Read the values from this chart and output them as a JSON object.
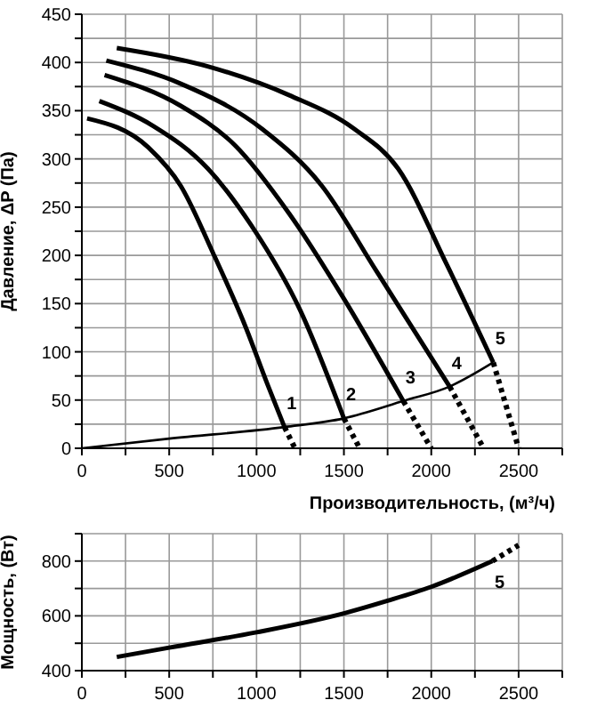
{
  "chart_data": [
    {
      "type": "line",
      "xlabel": "Производительность, (м³/ч)",
      "ylabel": "Давление, ΔP (Па)",
      "xlim": [
        0,
        2750
      ],
      "ylim": [
        0,
        450
      ],
      "xticks": [
        0,
        {
          "value": 250,
          "label": null
        },
        500,
        {
          "value": 750,
          "label": null
        },
        1000,
        {
          "value": 1250,
          "label": null
        },
        1500,
        {
          "value": 1750,
          "label": null
        },
        2000,
        {
          "value": 2250,
          "label": null
        },
        2500,
        {
          "value": 2750,
          "label": null
        }
      ],
      "yticks": [
        0,
        {
          "value": 25,
          "label": null
        },
        50,
        {
          "value": 75,
          "label": null
        },
        100,
        {
          "value": 125,
          "label": null
        },
        150,
        {
          "value": 175,
          "label": null
        },
        200,
        {
          "value": 225,
          "label": null
        },
        250,
        {
          "value": 275,
          "label": null
        },
        300,
        {
          "value": 325,
          "label": null
        },
        350,
        {
          "value": 375,
          "label": null
        },
        400,
        {
          "value": 425,
          "label": null
        },
        450
      ],
      "grid": true,
      "legend": false,
      "marker": "none",
      "series": [
        {
          "color": "#000000",
          "line_style": "solid",
          "x": [
            30,
            380,
            566,
            752,
            939,
            1063,
            1160
          ],
          "values": [
            342,
            312,
            272,
            202,
            125,
            66,
            22
          ]
        },
        {
          "color": "#000000",
          "line_style": "dotted",
          "x": [
            1160,
            1220
          ],
          "values": [
            22,
            0
          ]
        },
        {
          "color": "#000000",
          "line_style": "solid",
          "x": [
            100,
            410,
            721,
            970,
            1250,
            1500
          ],
          "values": [
            360,
            334,
            290,
            231,
            143,
            31
          ]
        },
        {
          "color": "#000000",
          "line_style": "dotted",
          "x": [
            1500,
            1590
          ],
          "values": [
            31,
            0
          ]
        },
        {
          "color": "#000000",
          "line_style": "solid",
          "x": [
            130,
            566,
            877,
            1188,
            1500,
            1840
          ],
          "values": [
            387,
            355,
            314,
            243,
            155,
            49
          ]
        },
        {
          "color": "#000000",
          "line_style": "dotted",
          "x": [
            1840,
            2000
          ],
          "values": [
            49,
            0
          ]
        },
        {
          "color": "#000000",
          "line_style": "solid",
          "x": [
            140,
            566,
            1032,
            1374,
            1685,
            2105
          ],
          "values": [
            402,
            378,
            331,
            272,
            184,
            64
          ]
        },
        {
          "color": "#000000",
          "line_style": "dotted",
          "x": [
            2105,
            2300
          ],
          "values": [
            64,
            0
          ]
        },
        {
          "color": "#000000",
          "line_style": "solid",
          "x": [
            200,
            720,
            1188,
            1560,
            1810,
            2090,
            2355
          ],
          "values": [
            415,
            396,
            366,
            331,
            290,
            190,
            89
          ]
        },
        {
          "color": "#000000",
          "line_style": "dotted",
          "x": [
            2355,
            2500
          ],
          "values": [
            89,
            0
          ]
        },
        {
          "color": "#000000",
          "line_style": "solid",
          "x": [
            0,
            500,
            1160,
            1500,
            1840,
            2105,
            2355
          ],
          "values": [
            0,
            10,
            22,
            31,
            49,
            64,
            89
          ]
        }
      ],
      "annotations": [
        "1",
        "2",
        "3",
        "4",
        "5"
      ]
    },
    {
      "type": "line",
      "ylabel": "Мощность, (Вт)",
      "xlim": [
        0,
        2750
      ],
      "ylim": [
        400,
        900
      ],
      "xticks": [
        0,
        {
          "value": 250,
          "label": null
        },
        500,
        {
          "value": 750,
          "label": null
        },
        1000,
        {
          "value": 1250,
          "label": null
        },
        1500,
        {
          "value": 1750,
          "label": null
        },
        2000,
        {
          "value": 2250,
          "label": null
        },
        2500,
        {
          "value": 2750,
          "label": null
        }
      ],
      "yticks": [
        400,
        {
          "value": 500,
          "label": null
        },
        600,
        {
          "value": 700,
          "label": null
        },
        800,
        {
          "value": 900,
          "label": null
        }
      ],
      "grid": true,
      "legend": false,
      "marker": "none",
      "series": [
        {
          "color": "#000000",
          "line_style": "solid",
          "x": [
            200,
            500,
            1000,
            1500,
            1750,
            2000,
            2350
          ],
          "values": [
            450,
            484,
            540,
            609,
            655,
            706,
            800
          ]
        },
        {
          "color": "#000000",
          "line_style": "dotted",
          "x": [
            2350,
            2500
          ],
          "values": [
            800,
            858
          ]
        }
      ],
      "annotations": [
        "5"
      ]
    }
  ]
}
